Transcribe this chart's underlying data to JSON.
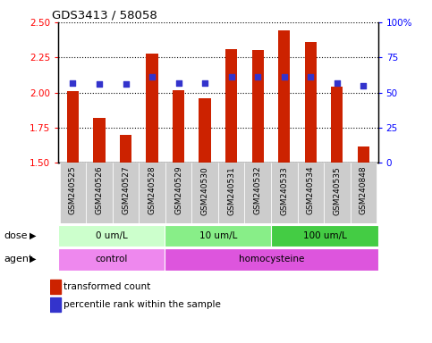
{
  "title": "GDS3413 / 58058",
  "samples": [
    "GSM240525",
    "GSM240526",
    "GSM240527",
    "GSM240528",
    "GSM240529",
    "GSM240530",
    "GSM240531",
    "GSM240532",
    "GSM240533",
    "GSM240534",
    "GSM240535",
    "GSM240848"
  ],
  "transformed_count": [
    2.01,
    1.82,
    1.7,
    2.28,
    2.02,
    1.96,
    2.31,
    2.3,
    2.44,
    2.36,
    2.04,
    1.62
  ],
  "percentile_rank": [
    57,
    56,
    56,
    61,
    57,
    57,
    61,
    61,
    61,
    61,
    57,
    55
  ],
  "ylim_left": [
    1.5,
    2.5
  ],
  "ylim_right": [
    0,
    100
  ],
  "yticks_left": [
    1.5,
    1.75,
    2.0,
    2.25,
    2.5
  ],
  "yticks_right": [
    0,
    25,
    50,
    75,
    100
  ],
  "ytick_labels_right": [
    "0",
    "25",
    "50",
    "75",
    "100%"
  ],
  "bar_color": "#cc2200",
  "dot_color": "#3333cc",
  "bar_bottom": 1.5,
  "dose_groups": [
    {
      "label": "0 um/L",
      "start": 0,
      "end": 3,
      "color": "#ccffcc"
    },
    {
      "label": "10 um/L",
      "start": 4,
      "end": 7,
      "color": "#88ee88"
    },
    {
      "label": "100 um/L",
      "start": 8,
      "end": 11,
      "color": "#44cc44"
    }
  ],
  "agent_groups": [
    {
      "label": "control",
      "start": 0,
      "end": 3,
      "color": "#ee88ee"
    },
    {
      "label": "homocysteine",
      "start": 4,
      "end": 11,
      "color": "#dd55dd"
    }
  ],
  "legend_red_label": "transformed count",
  "legend_blue_label": "percentile rank within the sample",
  "dose_label": "dose",
  "agent_label": "agent",
  "xtick_bg_color": "#cccccc"
}
